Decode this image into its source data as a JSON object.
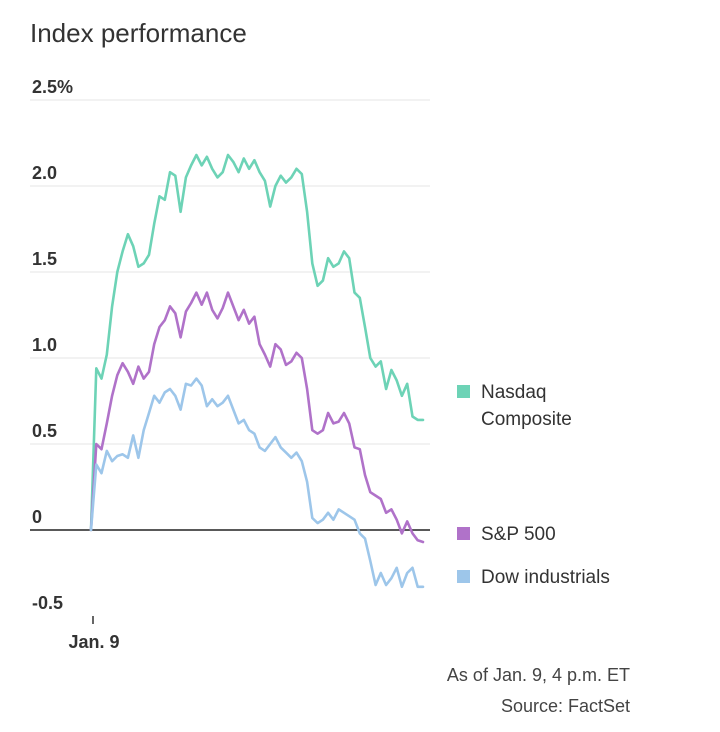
{
  "chart_data": {
    "type": "line",
    "title": "Index performance",
    "x_label_text": "Jan. 9",
    "ylim": [
      -0.5,
      2.5
    ],
    "y_ticks": [
      {
        "value": 2.5,
        "label": "2.5%"
      },
      {
        "value": 2.0,
        "label": "2.0"
      },
      {
        "value": 1.5,
        "label": "1.5"
      },
      {
        "value": 1.0,
        "label": "1.0"
      },
      {
        "value": 0.5,
        "label": "0.5"
      },
      {
        "value": 0,
        "label": "0"
      },
      {
        "value": -0.5,
        "label": "-0.5"
      }
    ],
    "grid": true,
    "legend_position": "right",
    "series": [
      {
        "name": "Nasdaq Composite",
        "name_lines": [
          "Nasdaq",
          "Composite"
        ],
        "color": "#6dd3b6",
        "values": [
          0.0,
          0.94,
          0.88,
          1.02,
          1.3,
          1.5,
          1.62,
          1.72,
          1.65,
          1.53,
          1.55,
          1.6,
          1.78,
          1.94,
          1.92,
          2.08,
          2.06,
          1.85,
          2.05,
          2.12,
          2.18,
          2.12,
          2.17,
          2.1,
          2.05,
          2.08,
          2.18,
          2.14,
          2.08,
          2.16,
          2.1,
          2.15,
          2.08,
          2.03,
          1.88,
          2.0,
          2.06,
          2.02,
          2.05,
          2.1,
          2.07,
          1.85,
          1.55,
          1.42,
          1.45,
          1.58,
          1.53,
          1.55,
          1.62,
          1.58,
          1.38,
          1.35,
          1.18,
          1.0,
          0.95,
          0.98,
          0.82,
          0.93,
          0.87,
          0.78,
          0.85,
          0.66,
          0.64,
          0.64
        ]
      },
      {
        "name": "S&P 500",
        "name_lines": [
          "S&P 500"
        ],
        "color": "#b072c9",
        "values": [
          0.0,
          0.5,
          0.47,
          0.62,
          0.78,
          0.9,
          0.97,
          0.92,
          0.85,
          0.95,
          0.88,
          0.92,
          1.08,
          1.18,
          1.22,
          1.3,
          1.26,
          1.12,
          1.27,
          1.32,
          1.38,
          1.31,
          1.38,
          1.28,
          1.23,
          1.29,
          1.38,
          1.3,
          1.22,
          1.28,
          1.2,
          1.24,
          1.08,
          1.02,
          0.95,
          1.08,
          1.05,
          0.96,
          0.98,
          1.03,
          1.0,
          0.82,
          0.58,
          0.56,
          0.58,
          0.68,
          0.62,
          0.63,
          0.68,
          0.62,
          0.48,
          0.47,
          0.32,
          0.22,
          0.2,
          0.18,
          0.1,
          0.12,
          0.06,
          -0.02,
          0.05,
          -0.02,
          -0.06,
          -0.07
        ]
      },
      {
        "name": "Dow industrials",
        "name_lines": [
          "Dow industrials"
        ],
        "color": "#9dc6ea",
        "values": [
          0.0,
          0.38,
          0.33,
          0.46,
          0.4,
          0.43,
          0.44,
          0.42,
          0.55,
          0.42,
          0.58,
          0.68,
          0.78,
          0.74,
          0.8,
          0.82,
          0.78,
          0.7,
          0.85,
          0.84,
          0.88,
          0.84,
          0.72,
          0.76,
          0.72,
          0.74,
          0.78,
          0.7,
          0.62,
          0.64,
          0.58,
          0.56,
          0.48,
          0.46,
          0.5,
          0.54,
          0.48,
          0.45,
          0.42,
          0.45,
          0.4,
          0.28,
          0.07,
          0.04,
          0.06,
          0.1,
          0.06,
          0.12,
          0.1,
          0.08,
          0.06,
          -0.02,
          -0.05,
          -0.18,
          -0.32,
          -0.25,
          -0.32,
          -0.28,
          -0.22,
          -0.33,
          -0.25,
          -0.22,
          -0.33,
          -0.33
        ]
      }
    ]
  },
  "footer": {
    "as_of": "As of Jan. 9, 4 p.m. ET",
    "source": "Source: FactSet"
  }
}
